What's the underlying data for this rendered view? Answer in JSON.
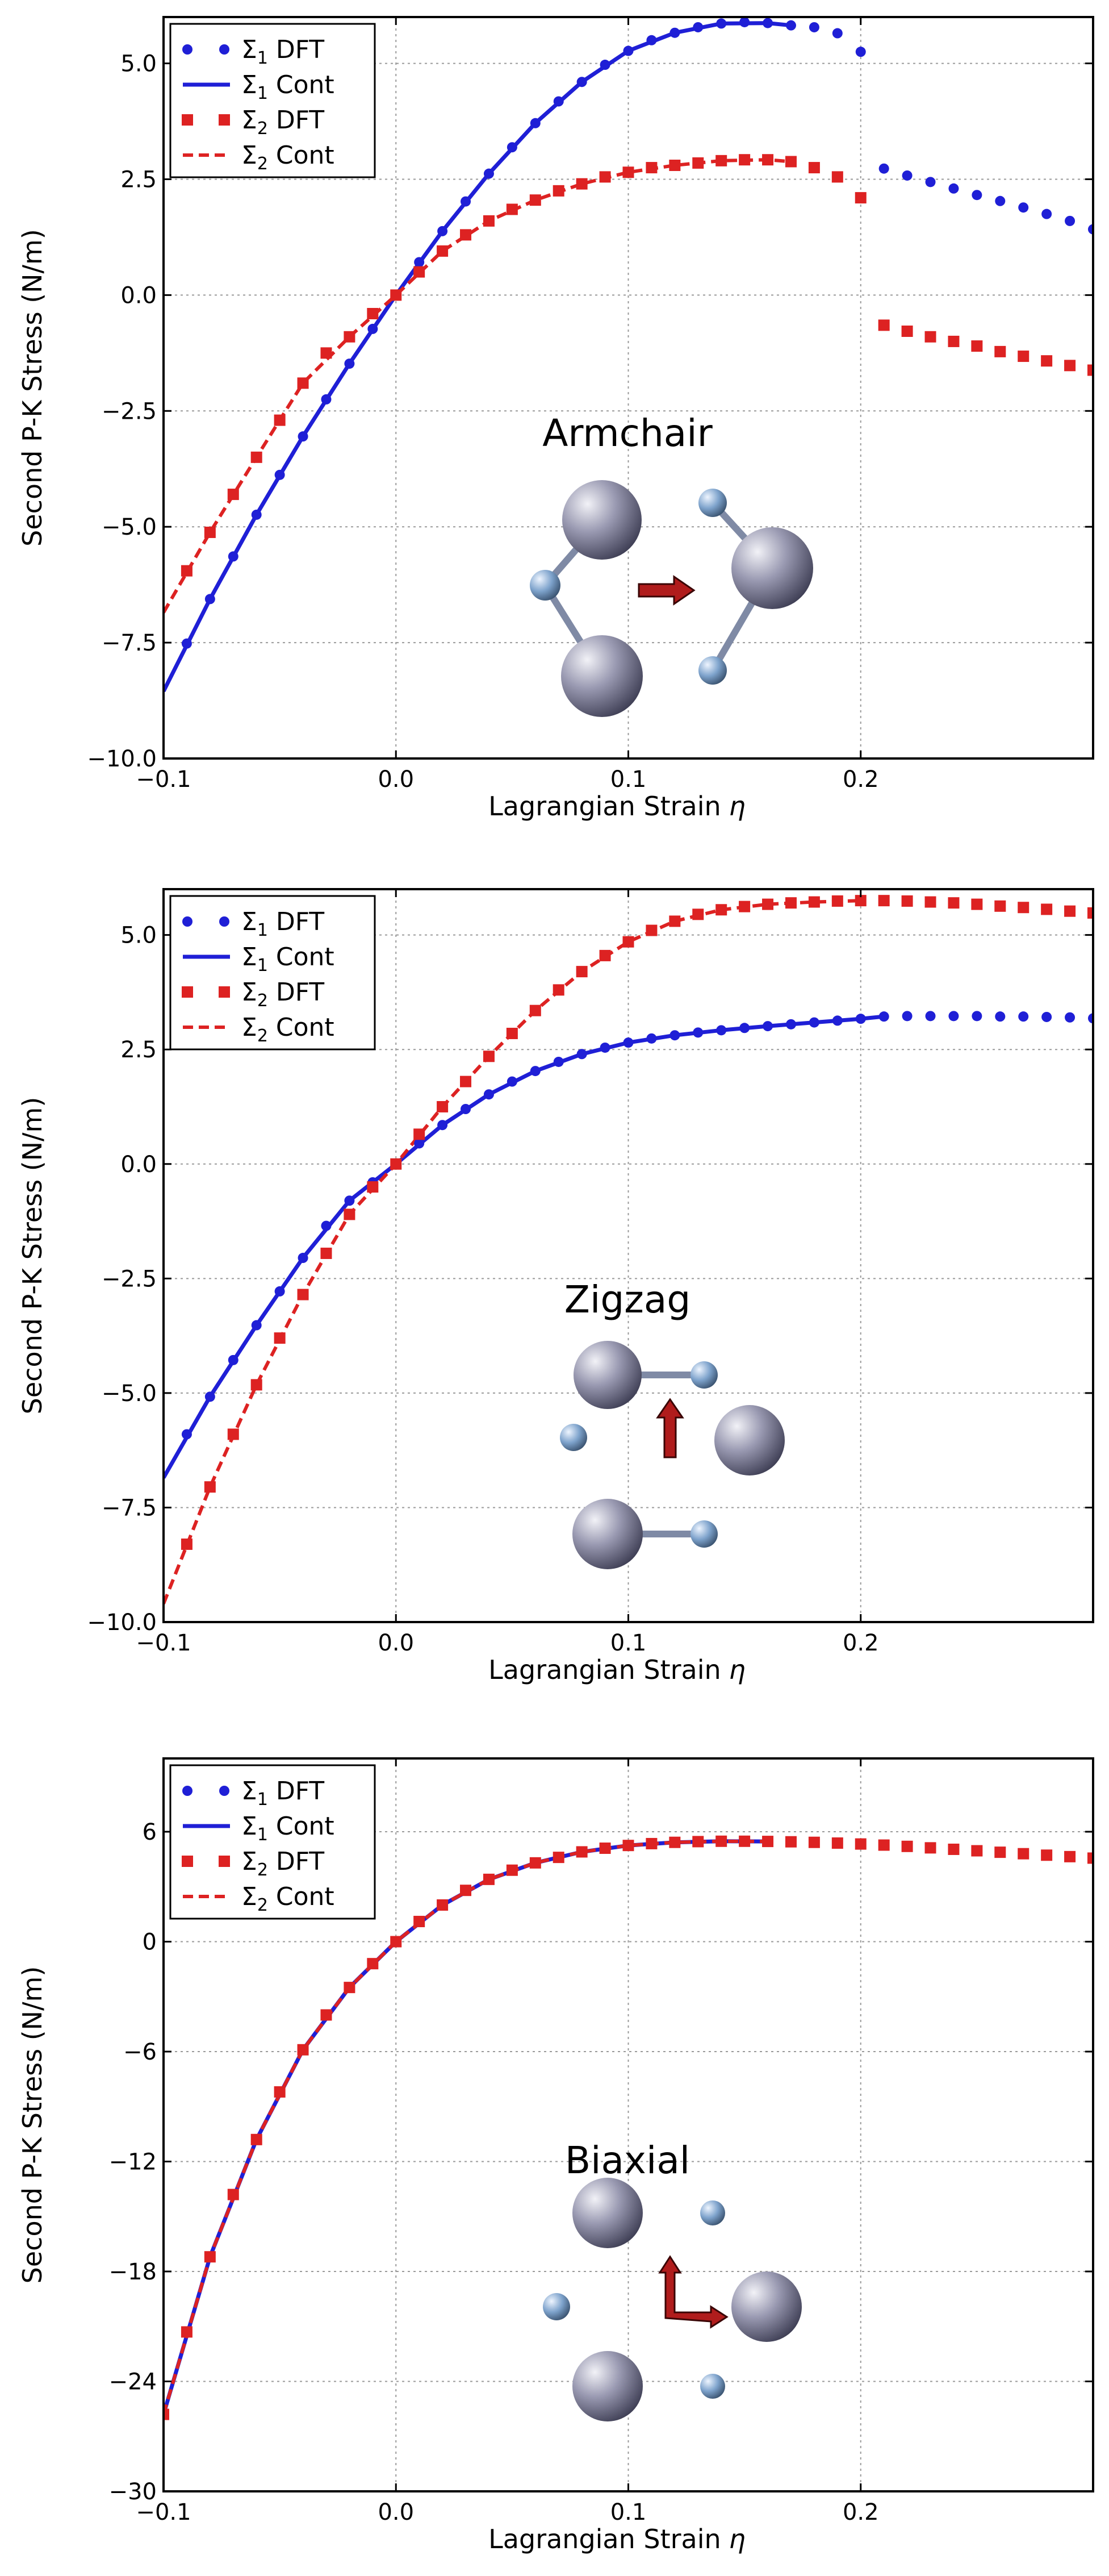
{
  "figure": {
    "background": "#ffffff"
  },
  "chart_data": [
    {
      "type": "line",
      "panel": "armchair",
      "title": "",
      "annotation": "Armchair",
      "xlabel": "Lagrangian Strain",
      "xlabel_symbol": "η",
      "ylabel": "Second P-K Stress (N/m)",
      "xlim": [
        -0.1,
        0.3
      ],
      "ylim": [
        -10.0,
        6.0
      ],
      "xticks": [
        -0.1,
        0.0,
        0.1,
        0.2
      ],
      "xtick_labels": [
        "−0.1",
        "0.0",
        "0.1",
        "0.2"
      ],
      "yticks": [
        -10.0,
        -7.5,
        -5.0,
        -2.5,
        0.0,
        2.5,
        5.0
      ],
      "ytick_labels": [
        "−10.0",
        "−7.5",
        "−5.0",
        "−2.5",
        "0.0",
        "2.5",
        "5.0"
      ],
      "grid": true,
      "legend_position": "top-left",
      "legend": [
        "Σ1 DFT",
        "Σ1 Cont",
        "Σ2 DFT",
        "Σ2 Cont"
      ],
      "series": [
        {
          "name": "Σ1 DFT",
          "kind": "dots",
          "color": "#1f1fd6",
          "x": [
            -0.09,
            -0.08,
            -0.07,
            -0.06,
            -0.05,
            -0.04,
            -0.03,
            -0.02,
            -0.01,
            0.0,
            0.01,
            0.02,
            0.03,
            0.04,
            0.05,
            0.06,
            0.07,
            0.08,
            0.09,
            0.1,
            0.11,
            0.12,
            0.13,
            0.14,
            0.15,
            0.16,
            0.17,
            0.18,
            0.19,
            0.2,
            0.21,
            0.22,
            0.23,
            0.24,
            0.25,
            0.26,
            0.27,
            0.28,
            0.29,
            0.3
          ],
          "y": [
            -7.52,
            -6.56,
            -5.64,
            -4.74,
            -3.88,
            -3.05,
            -2.25,
            -1.48,
            -0.73,
            0.0,
            0.71,
            1.38,
            2.02,
            2.62,
            3.19,
            3.71,
            4.18,
            4.6,
            4.97,
            5.27,
            5.5,
            5.66,
            5.78,
            5.86,
            5.89,
            5.87,
            5.82,
            5.78,
            5.65,
            5.25,
            2.73,
            2.58,
            2.44,
            2.3,
            2.16,
            2.03,
            1.89,
            1.75,
            1.6,
            1.42
          ]
        },
        {
          "name": "Σ1 Cont",
          "kind": "line",
          "color": "#1f1fd6",
          "x": [
            -0.1,
            -0.08,
            -0.06,
            -0.04,
            -0.02,
            0.0,
            0.02,
            0.04,
            0.06,
            0.08,
            0.1,
            0.12,
            0.14,
            0.16,
            0.17
          ],
          "y": [
            -8.55,
            -6.56,
            -4.74,
            -3.05,
            -1.48,
            0.0,
            1.38,
            2.62,
            3.71,
            4.6,
            5.27,
            5.66,
            5.86,
            5.87,
            5.82
          ]
        },
        {
          "name": "Σ2 DFT",
          "kind": "squares",
          "color": "#dd2222",
          "x": [
            -0.09,
            -0.08,
            -0.07,
            -0.06,
            -0.05,
            -0.04,
            -0.03,
            -0.02,
            -0.01,
            0.0,
            0.01,
            0.02,
            0.03,
            0.04,
            0.05,
            0.06,
            0.07,
            0.08,
            0.09,
            0.1,
            0.11,
            0.12,
            0.13,
            0.14,
            0.15,
            0.16,
            0.17,
            0.18,
            0.19,
            0.2,
            0.21,
            0.22,
            0.23,
            0.24,
            0.25,
            0.26,
            0.27,
            0.28,
            0.29,
            0.3
          ],
          "y": [
            -5.95,
            -5.12,
            -4.3,
            -3.5,
            -2.7,
            -1.9,
            -1.25,
            -0.9,
            -0.4,
            0.0,
            0.5,
            0.95,
            1.3,
            1.6,
            1.85,
            2.05,
            2.25,
            2.4,
            2.55,
            2.65,
            2.75,
            2.8,
            2.85,
            2.9,
            2.92,
            2.92,
            2.88,
            2.75,
            2.55,
            2.1,
            -0.65,
            -0.78,
            -0.9,
            -1.0,
            -1.1,
            -1.22,
            -1.32,
            -1.42,
            -1.52,
            -1.62
          ]
        },
        {
          "name": "Σ2 Cont",
          "kind": "dashed",
          "color": "#dd2222",
          "x": [
            -0.1,
            -0.08,
            -0.06,
            -0.04,
            -0.02,
            0.0,
            0.02,
            0.04,
            0.06,
            0.08,
            0.1,
            0.12,
            0.14,
            0.16,
            0.17
          ],
          "y": [
            -6.85,
            -5.12,
            -3.5,
            -1.9,
            -0.9,
            0.0,
            0.95,
            1.6,
            2.05,
            2.4,
            2.65,
            2.8,
            2.9,
            2.92,
            2.88
          ]
        }
      ]
    },
    {
      "type": "line",
      "panel": "zigzag",
      "title": "",
      "annotation": "Zigzag",
      "xlabel": "Lagrangian Strain",
      "xlabel_symbol": "η",
      "ylabel": "Second P-K Stress (N/m)",
      "xlim": [
        -0.1,
        0.3
      ],
      "ylim": [
        -10.0,
        6.0
      ],
      "xticks": [
        -0.1,
        0.0,
        0.1,
        0.2
      ],
      "xtick_labels": [
        "−0.1",
        "0.0",
        "0.1",
        "0.2"
      ],
      "yticks": [
        -10.0,
        -7.5,
        -5.0,
        -2.5,
        0.0,
        2.5,
        5.0
      ],
      "ytick_labels": [
        "−10.0",
        "−7.5",
        "−5.0",
        "−2.5",
        "0.0",
        "2.5",
        "5.0"
      ],
      "grid": true,
      "legend_position": "top-left",
      "legend": [
        "Σ1 DFT",
        "Σ1 Cont",
        "Σ2 DFT",
        "Σ2 Cont"
      ],
      "series": [
        {
          "name": "Σ1 DFT",
          "kind": "dots",
          "color": "#1f1fd6",
          "x": [
            -0.09,
            -0.08,
            -0.07,
            -0.06,
            -0.05,
            -0.04,
            -0.03,
            -0.02,
            -0.01,
            0.0,
            0.01,
            0.02,
            0.03,
            0.04,
            0.05,
            0.06,
            0.07,
            0.08,
            0.09,
            0.1,
            0.11,
            0.12,
            0.13,
            0.14,
            0.15,
            0.16,
            0.17,
            0.18,
            0.19,
            0.2,
            0.21,
            0.22,
            0.23,
            0.24,
            0.25,
            0.26,
            0.27,
            0.28,
            0.29,
            0.3
          ],
          "y": [
            -5.9,
            -5.08,
            -4.28,
            -3.52,
            -2.78,
            -2.05,
            -1.35,
            -0.8,
            -0.4,
            0.0,
            0.45,
            0.85,
            1.2,
            1.52,
            1.8,
            2.03,
            2.23,
            2.4,
            2.54,
            2.65,
            2.74,
            2.81,
            2.87,
            2.92,
            2.97,
            3.01,
            3.05,
            3.09,
            3.13,
            3.17,
            3.22,
            3.23,
            3.23,
            3.23,
            3.23,
            3.22,
            3.22,
            3.21,
            3.2,
            3.18
          ]
        },
        {
          "name": "Σ1 Cont",
          "kind": "line",
          "color": "#1f1fd6",
          "x": [
            -0.1,
            -0.08,
            -0.06,
            -0.04,
            -0.02,
            0.0,
            0.02,
            0.04,
            0.06,
            0.08,
            0.1,
            0.12,
            0.14,
            0.16,
            0.18,
            0.2,
            0.21
          ],
          "y": [
            -6.85,
            -5.08,
            -3.52,
            -2.05,
            -0.8,
            0.0,
            0.85,
            1.52,
            2.03,
            2.4,
            2.65,
            2.81,
            2.92,
            3.01,
            3.09,
            3.17,
            3.22
          ]
        },
        {
          "name": "Σ2 DFT",
          "kind": "squares",
          "color": "#dd2222",
          "x": [
            -0.09,
            -0.08,
            -0.07,
            -0.06,
            -0.05,
            -0.04,
            -0.03,
            -0.02,
            -0.01,
            0.0,
            0.01,
            0.02,
            0.03,
            0.04,
            0.05,
            0.06,
            0.07,
            0.08,
            0.09,
            0.1,
            0.11,
            0.12,
            0.13,
            0.14,
            0.15,
            0.16,
            0.17,
            0.18,
            0.19,
            0.2,
            0.21,
            0.22,
            0.23,
            0.24,
            0.25,
            0.26,
            0.27,
            0.28,
            0.29,
            0.3
          ],
          "y": [
            -8.3,
            -7.05,
            -5.9,
            -4.82,
            -3.8,
            -2.85,
            -1.95,
            -1.1,
            -0.5,
            0.0,
            0.65,
            1.25,
            1.8,
            2.35,
            2.85,
            3.35,
            3.8,
            4.2,
            4.55,
            4.85,
            5.1,
            5.3,
            5.45,
            5.55,
            5.62,
            5.67,
            5.7,
            5.72,
            5.74,
            5.75,
            5.75,
            5.74,
            5.72,
            5.7,
            5.67,
            5.63,
            5.6,
            5.56,
            5.52,
            5.48
          ]
        },
        {
          "name": "Σ2 Cont",
          "kind": "dashed",
          "color": "#dd2222",
          "x": [
            -0.1,
            -0.08,
            -0.06,
            -0.04,
            -0.02,
            0.0,
            0.02,
            0.04,
            0.06,
            0.08,
            0.1,
            0.12,
            0.14,
            0.16,
            0.18,
            0.2
          ],
          "y": [
            -9.6,
            -7.05,
            -4.82,
            -2.85,
            -1.1,
            0.0,
            1.25,
            2.35,
            3.35,
            4.2,
            4.85,
            5.3,
            5.55,
            5.67,
            5.72,
            5.75
          ]
        }
      ]
    },
    {
      "type": "line",
      "panel": "biaxial",
      "title": "",
      "annotation": "Biaxial",
      "xlabel": "Lagrangian Strain",
      "xlabel_symbol": "η",
      "ylabel": "Second P-K Stress (N/m)",
      "xlim": [
        -0.1,
        0.3
      ],
      "ylim": [
        -30,
        10
      ],
      "xticks": [
        -0.1,
        0.0,
        0.1,
        0.2
      ],
      "xtick_labels": [
        "−0.1",
        "0.0",
        "0.1",
        "0.2"
      ],
      "yticks": [
        -30,
        -24,
        -18,
        -12,
        -6,
        0,
        6
      ],
      "ytick_labels": [
        "−30",
        "−24",
        "−18",
        "−12",
        "−6",
        "0",
        "6"
      ],
      "grid": true,
      "legend_position": "top-left",
      "legend": [
        "Σ1 DFT",
        "Σ1 Cont",
        "Σ2 DFT",
        "Σ2 Cont"
      ],
      "series": [
        {
          "name": "Σ1 DFT",
          "kind": "dots",
          "color": "#1f1fd6",
          "x": [
            -0.09,
            -0.08,
            -0.07,
            -0.06,
            -0.05,
            -0.04,
            -0.03,
            -0.02,
            -0.01,
            0.0,
            0.01,
            0.02,
            0.03,
            0.04,
            0.05,
            0.06,
            0.07,
            0.08,
            0.09,
            0.1,
            0.11,
            0.12,
            0.13,
            0.14,
            0.15,
            0.16
          ],
          "y": [
            -21.3,
            -17.2,
            -13.8,
            -10.8,
            -8.2,
            -5.9,
            -4.0,
            -2.5,
            -1.2,
            0.0,
            1.1,
            2.0,
            2.8,
            3.4,
            3.9,
            4.3,
            4.6,
            4.9,
            5.1,
            5.25,
            5.35,
            5.42,
            5.46,
            5.48,
            5.48,
            5.47
          ]
        },
        {
          "name": "Σ1 Cont",
          "kind": "line",
          "color": "#1f1fd6",
          "x": [
            -0.1,
            -0.08,
            -0.06,
            -0.04,
            -0.02,
            0.0,
            0.02,
            0.04,
            0.06,
            0.08,
            0.1,
            0.12,
            0.14,
            0.16
          ],
          "y": [
            -25.8,
            -17.2,
            -10.8,
            -5.9,
            -2.5,
            0.0,
            2.0,
            3.4,
            4.3,
            4.9,
            5.25,
            5.42,
            5.48,
            5.47
          ]
        },
        {
          "name": "Σ2 DFT",
          "kind": "squares",
          "color": "#dd2222",
          "x": [
            -0.1,
            -0.09,
            -0.08,
            -0.07,
            -0.06,
            -0.05,
            -0.04,
            -0.03,
            -0.02,
            -0.01,
            0.0,
            0.01,
            0.02,
            0.03,
            0.04,
            0.05,
            0.06,
            0.07,
            0.08,
            0.09,
            0.1,
            0.11,
            0.12,
            0.13,
            0.14,
            0.15,
            0.16,
            0.17,
            0.18,
            0.19,
            0.2,
            0.21,
            0.22,
            0.23,
            0.24,
            0.25,
            0.26,
            0.27,
            0.28,
            0.29,
            0.3
          ],
          "y": [
            -25.8,
            -21.3,
            -17.2,
            -13.8,
            -10.8,
            -8.2,
            -5.9,
            -4.0,
            -2.5,
            -1.2,
            0.0,
            1.1,
            2.0,
            2.8,
            3.4,
            3.9,
            4.3,
            4.6,
            4.9,
            5.1,
            5.25,
            5.35,
            5.42,
            5.46,
            5.48,
            5.48,
            5.47,
            5.45,
            5.42,
            5.38,
            5.33,
            5.27,
            5.2,
            5.12,
            5.04,
            4.96,
            4.88,
            4.8,
            4.72,
            4.64,
            4.56
          ]
        },
        {
          "name": "Σ2 Cont",
          "kind": "dashed",
          "color": "#dd2222",
          "x": [
            -0.1,
            -0.08,
            -0.06,
            -0.04,
            -0.02,
            0.0,
            0.02,
            0.04,
            0.06,
            0.08,
            0.1,
            0.12,
            0.14,
            0.16
          ],
          "y": [
            -25.8,
            -17.2,
            -10.8,
            -5.9,
            -2.5,
            0.0,
            2.0,
            3.4,
            4.3,
            4.9,
            5.25,
            5.42,
            5.48,
            5.47
          ]
        }
      ]
    }
  ],
  "colors": {
    "sigma1": "#1f1fd6",
    "sigma2": "#dd2222",
    "grid": "#9a9a9a",
    "atom_large": "#8e8ea6",
    "atom_small": "#7a9ec8",
    "bond": "#7f8aa5",
    "arrow_fill": "#b01c1c"
  }
}
